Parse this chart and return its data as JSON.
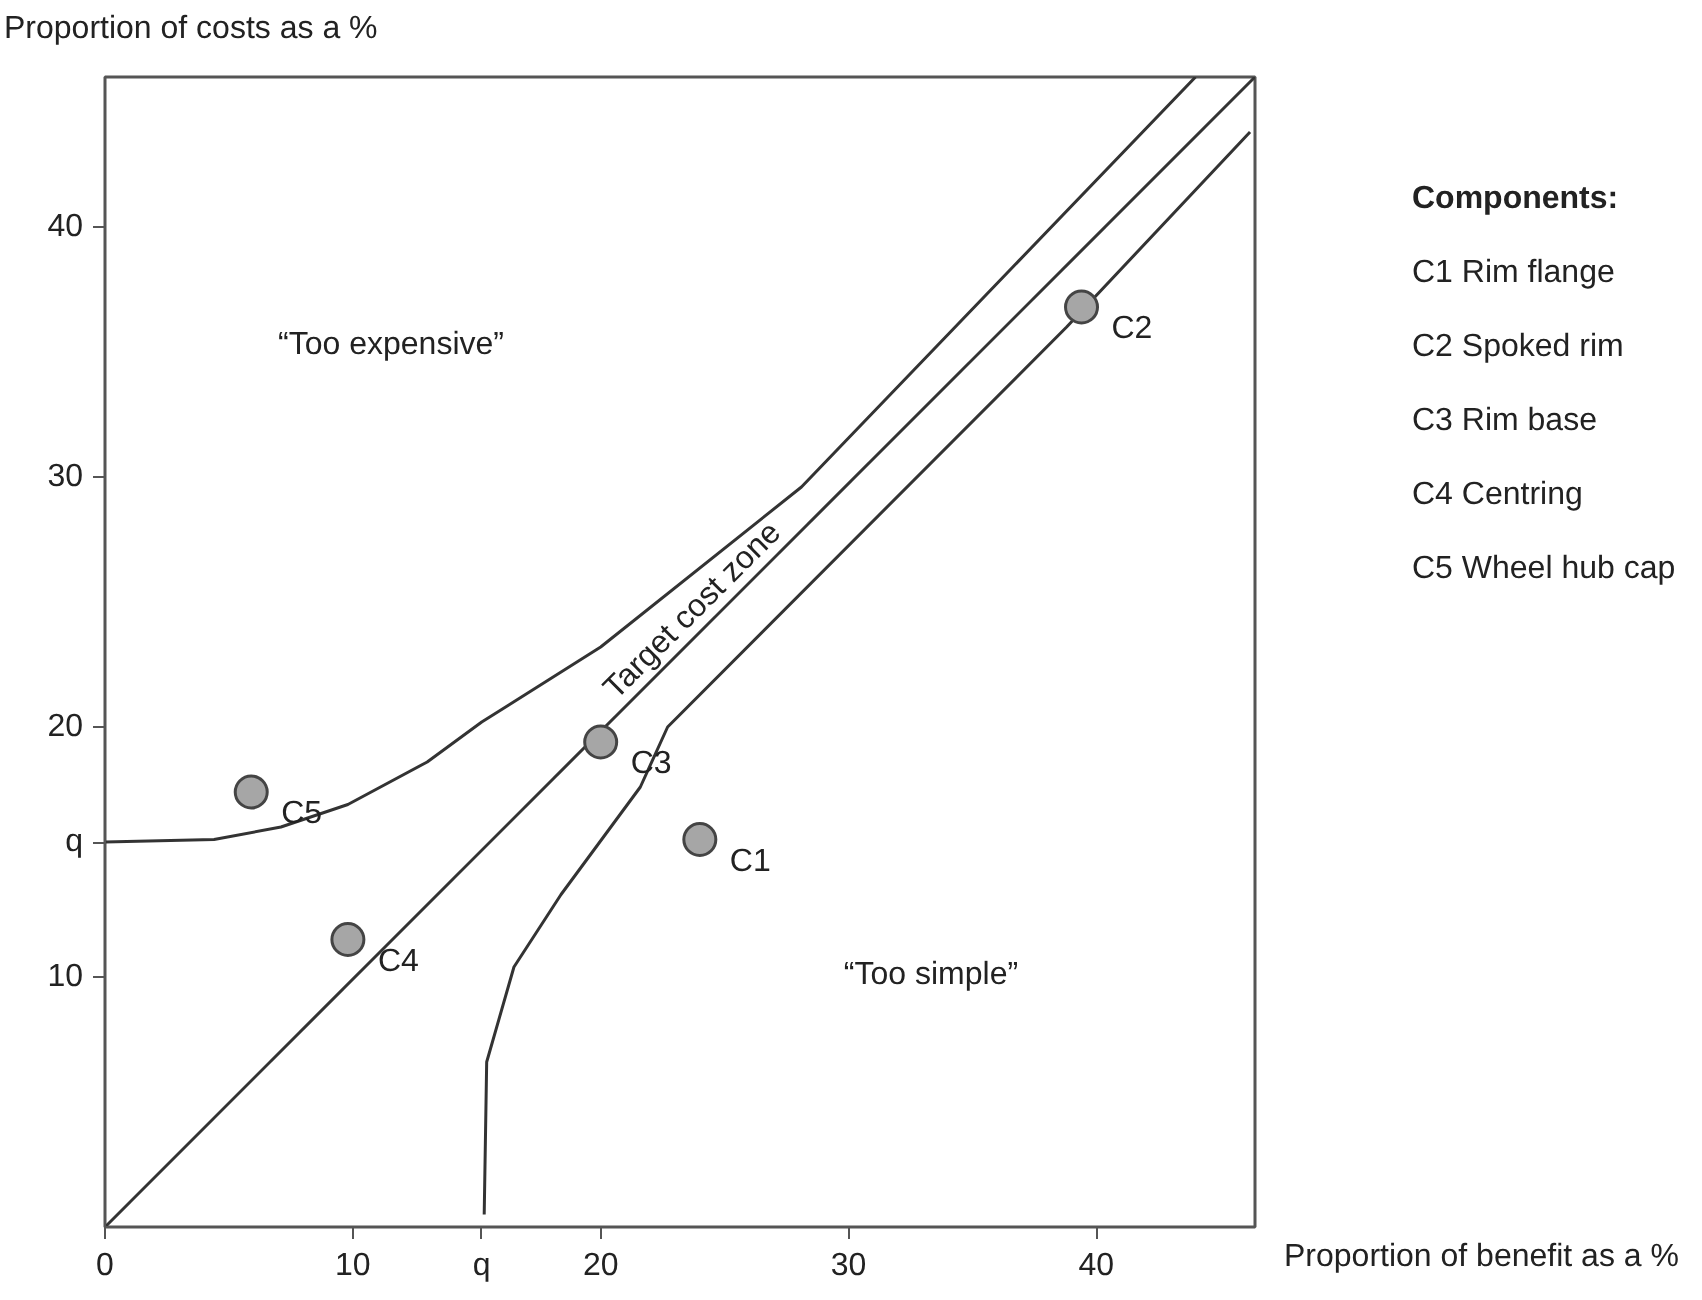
{
  "chart_data": {
    "type": "scatter",
    "xlabel": "Proportion of benefit as a %",
    "ylabel": "Proportion of costs as a %",
    "xlim": [
      0,
      46.4
    ],
    "ylim": [
      0,
      46
    ],
    "xticks": [
      0,
      10,
      {
        "value": 15.2,
        "label": "q"
      },
      20,
      30,
      40
    ],
    "yticks": [
      10,
      {
        "value": 15.4,
        "label": "q"
      },
      20,
      30,
      40
    ],
    "grid": false,
    "marker": "circle",
    "series": [
      {
        "color": "#a6a6a6",
        "x": [
          24,
          39.4,
          20,
          9.8,
          5.9
        ],
        "values": [
          15.5,
          36.8,
          19.4,
          11.5,
          17.4
        ]
      },
      {
        "type": "line",
        "marker": "none",
        "color": "#333333",
        "x": [
          0,
          46.4
        ],
        "values": [
          0,
          46
        ]
      },
      {
        "type": "line",
        "marker": "none",
        "color": "#333333",
        "x": [
          0,
          4.4,
          7.1,
          9.8,
          13.0,
          15.2,
          20,
          28.1,
          44
        ],
        "values": [
          15.4,
          15.5,
          16.0,
          16.9,
          18.6,
          20.2,
          23.2,
          29.6,
          46
        ]
      },
      {
        "type": "line",
        "marker": "none",
        "color": "#333333",
        "x": [
          15.3,
          15.4,
          16.5,
          18.4,
          21.6,
          22.7,
          38.8,
          46.2
        ],
        "values": [
          0.5,
          6.6,
          10.4,
          13.3,
          17.6,
          20,
          36,
          43.8
        ]
      }
    ],
    "annotations": [
      {
        "text": "C1",
        "x": 24,
        "y": 15.5
      },
      {
        "text": "C2",
        "x": 39.4,
        "y": 36.8
      },
      {
        "text": "C3",
        "x": 20,
        "y": 19.4
      },
      {
        "text": "C4",
        "x": 9.8,
        "y": 11.5
      },
      {
        "text": "C5",
        "x": 5.9,
        "y": 17.4
      },
      "“Too expensive”",
      "“Too simple”",
      "Target cost zone",
      "Components:",
      "C1 Rim flange",
      "C2 Spoked rim",
      "C3 Rim base",
      "C4 Centring",
      "C5 Wheel hub cap"
    ]
  }
}
